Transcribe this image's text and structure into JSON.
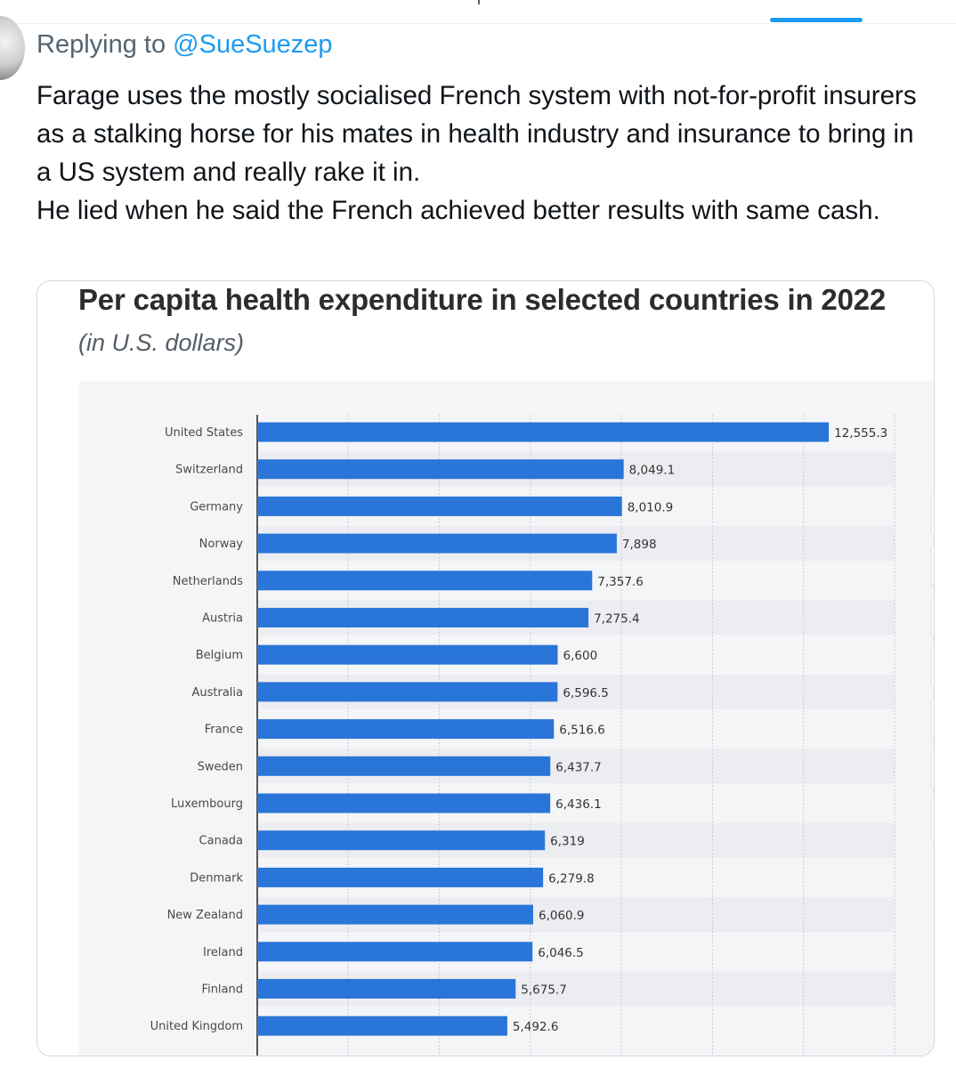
{
  "reply": {
    "prefix": "Replying to",
    "mention": "@SueSuezep"
  },
  "tweet": {
    "lines": [
      "Farage uses the mostly socialised French system with not-for-profit insurers as a stalking horse for his mates in health industry and insurance to bring in a US system and really rake it in.",
      "He lied when he said the French achieved better results with same cash."
    ]
  },
  "chart_toolbar": {
    "icons": [
      "star-icon",
      "bell-icon",
      "gear-icon",
      "share-icon",
      "quote-icon",
      "spain-flag-icon",
      "print-icon"
    ]
  },
  "colors": {
    "accent": "#1d9bf0",
    "bar": "#2a75d8"
  },
  "chart_data": {
    "type": "bar",
    "orientation": "horizontal",
    "title": "Per capita health expenditure in selected countries in 2022",
    "subtitle": "(in U.S. dollars)",
    "categories": [
      "United States",
      "Switzerland",
      "Germany",
      "Norway",
      "Netherlands",
      "Austria",
      "Belgium",
      "Australia",
      "France",
      "Sweden",
      "Luxembourg",
      "Canada",
      "Denmark",
      "New Zealand",
      "Ireland",
      "Finland",
      "United Kingdom"
    ],
    "values": [
      12555.3,
      8049.1,
      8010.9,
      7898,
      7357.6,
      7275.4,
      6600,
      6596.5,
      6516.6,
      6437.7,
      6436.1,
      6319,
      6279.8,
      6060.9,
      6046.5,
      5675.7,
      5492.6
    ],
    "value_labels": [
      "12,555.3",
      "8,049.1",
      "8,010.9",
      "7,898",
      "7,357.6",
      "7,275.4",
      "6,600",
      "6,596.5",
      "6,516.6",
      "6,437.7",
      "6,436.1",
      "6,319",
      "6,279.8",
      "6,060.9",
      "6,046.5",
      "5,675.7",
      "5,492.6"
    ],
    "xlim": [
      0,
      14000
    ],
    "gridlines": [
      2000,
      4000,
      6000,
      8000,
      10000,
      12000,
      14000
    ],
    "grid": true
  }
}
